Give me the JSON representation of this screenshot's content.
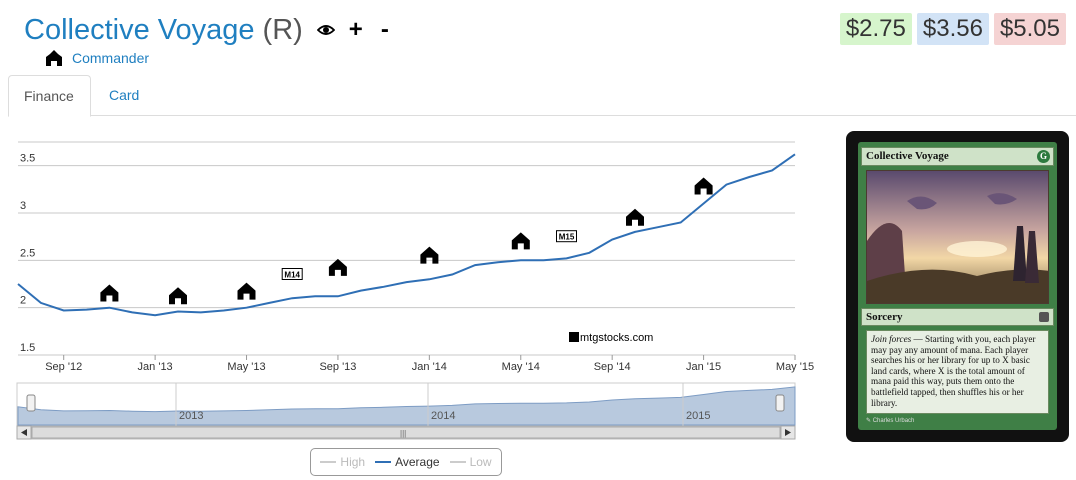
{
  "header": {
    "card_name": "Collective Voyage",
    "rarity": "(R)",
    "plus_label": "+",
    "minus_label": "-",
    "set_name": "Commander"
  },
  "prices": {
    "low": "$2.75",
    "avg": "$3.56",
    "high": "$5.05"
  },
  "tabs": [
    {
      "label": "Finance",
      "active": true
    },
    {
      "label": "Card",
      "active": false
    }
  ],
  "legend": {
    "high": "High",
    "average": "Average",
    "low": "Low"
  },
  "watermark": "mtgstocks.com",
  "navigator": {
    "year_labels": [
      "2013",
      "2014",
      "2015"
    ]
  },
  "chart_data": {
    "type": "line",
    "ylim": [
      1.5,
      3.75
    ],
    "yticks": [
      1.5,
      2,
      2.5,
      3,
      3.5
    ],
    "ytick_labels": [
      "1.5",
      "2",
      "2.5",
      "3",
      "3.5"
    ],
    "xtick_labels": [
      "Sep '12",
      "Jan '13",
      "May '13",
      "Sep '13",
      "Jan '14",
      "May '14",
      "Sep '14",
      "Jan '15",
      "May '15"
    ],
    "x_range": [
      "2012-07",
      "2015-05"
    ],
    "series": [
      {
        "name": "Average",
        "color": "#2f6fb5",
        "x": [
          "2012-07",
          "2012-08",
          "2012-09",
          "2012-10",
          "2012-11",
          "2012-12",
          "2013-01",
          "2013-02",
          "2013-03",
          "2013-04",
          "2013-05",
          "2013-06",
          "2013-07",
          "2013-08",
          "2013-09",
          "2013-10",
          "2013-11",
          "2013-12",
          "2014-01",
          "2014-02",
          "2014-03",
          "2014-04",
          "2014-05",
          "2014-06",
          "2014-07",
          "2014-08",
          "2014-09",
          "2014-10",
          "2014-11",
          "2014-12",
          "2015-01",
          "2015-02",
          "2015-03",
          "2015-04",
          "2015-05"
        ],
        "values": [
          2.25,
          2.05,
          1.97,
          1.98,
          2.0,
          1.95,
          1.92,
          1.96,
          1.95,
          1.97,
          2.0,
          2.05,
          2.1,
          2.12,
          2.12,
          2.18,
          2.22,
          2.27,
          2.3,
          2.35,
          2.45,
          2.48,
          2.5,
          2.5,
          2.52,
          2.58,
          2.72,
          2.8,
          2.85,
          2.9,
          3.1,
          3.3,
          3.38,
          3.45,
          3.62
        ]
      }
    ],
    "legend_position": "bottom-center",
    "grid": true
  },
  "set_markers": [
    {
      "date": "2012-11",
      "value": 2.15,
      "icon": "commander-set-icon"
    },
    {
      "date": "2013-02",
      "value": 2.12,
      "icon": "return-to-ravnica-block-icon"
    },
    {
      "date": "2013-05",
      "value": 2.17,
      "icon": "dragons-maze-icon"
    },
    {
      "date": "2013-07",
      "value": 2.35,
      "icon": "m14-icon",
      "text": "M14"
    },
    {
      "date": "2013-09",
      "value": 2.42,
      "icon": "theros-icon"
    },
    {
      "date": "2014-01",
      "value": 2.55,
      "icon": "born-of-the-gods-icon"
    },
    {
      "date": "2014-05",
      "value": 2.7,
      "icon": "journey-into-nyx-icon"
    },
    {
      "date": "2014-07",
      "value": 2.75,
      "icon": "m15-icon",
      "text": "M15"
    },
    {
      "date": "2014-10",
      "value": 2.95,
      "icon": "khans-of-tarkir-icon"
    },
    {
      "date": "2015-01",
      "value": 3.28,
      "icon": "fate-reforged-icon"
    }
  ],
  "card_image": {
    "title": "Collective Voyage",
    "mana_symbol": "G",
    "type_line": "Sorcery",
    "keyword": "Join forces",
    "rules_text": " — Starting with you, each player may pay any amount of mana. Each player searches his or her library for up to X basic land cards, where X is the total amount of mana paid this way, puts them onto the battlefield tapped, then shuffles his or her library.",
    "artist": "Charles Urbach"
  }
}
